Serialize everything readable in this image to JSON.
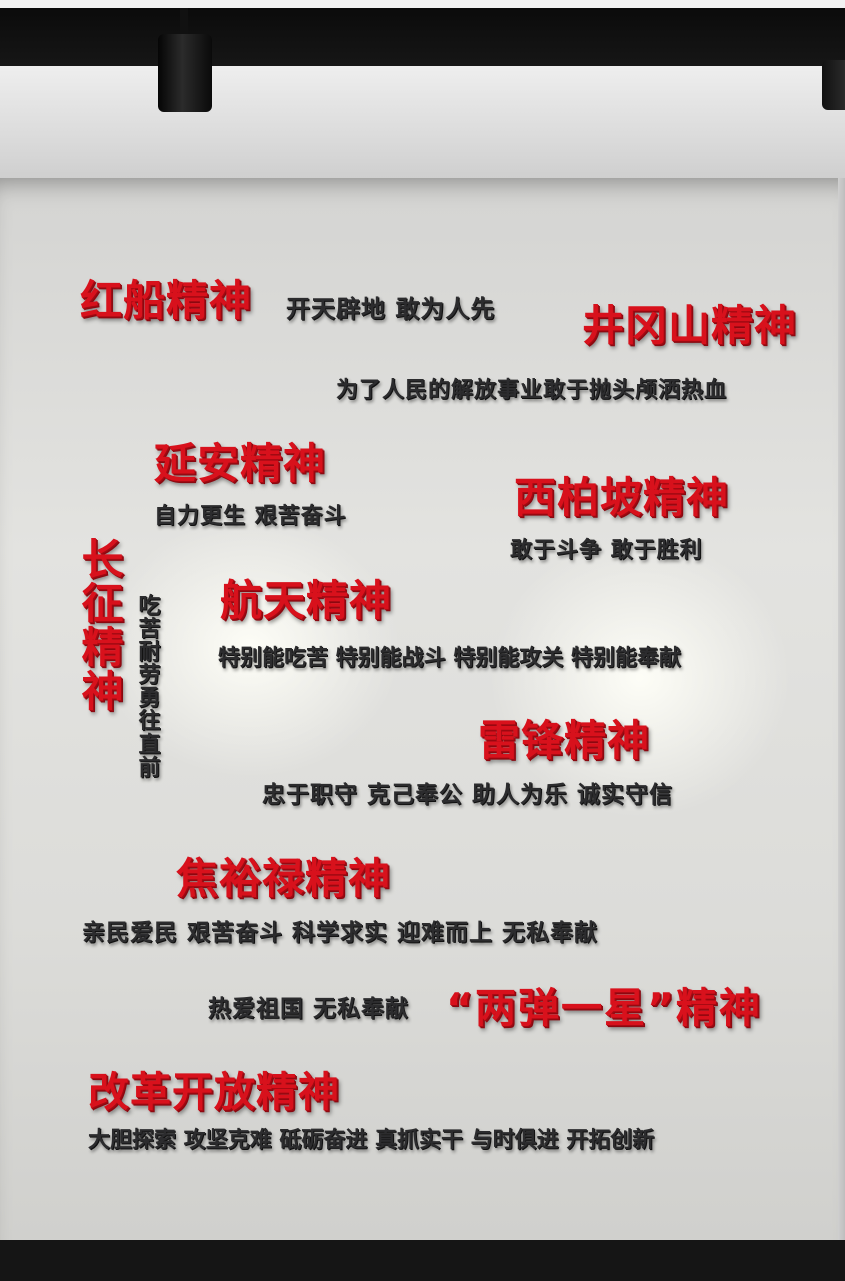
{
  "spirits": {
    "hongchuan": {
      "title": "红船精神",
      "motto": "开天辟地 敢为人先"
    },
    "jinggangshan": {
      "title": "井冈山精神",
      "motto": "为了人民的解放事业敢于抛头颅洒热血"
    },
    "yanan": {
      "title": "延安精神",
      "motto": "自力更生 艰苦奋斗"
    },
    "xibaipo": {
      "title": "西柏坡精神",
      "motto": "敢于斗争 敢于胜利"
    },
    "changzheng": {
      "title": "长征精神",
      "motto": "吃苦耐劳 勇往直前"
    },
    "hangtian": {
      "title": "航天精神",
      "motto": "特别能吃苦 特别能战斗 特别能攻关 特别能奉献"
    },
    "leifeng": {
      "title": "雷锋精神",
      "motto": "忠于职守 克己奉公 助人为乐 诚实守信"
    },
    "jiaoyulu": {
      "title": "焦裕禄精神",
      "motto": "亲民爱民 艰苦奋斗 科学求实 迎难而上 无私奉献"
    },
    "liangdan": {
      "title": "“两弹一星”精神",
      "motto": "热爱祖国 无私奉献"
    },
    "gaige": {
      "title": "改革开放精神",
      "motto": "大胆探索 攻坚克难 砥砺奋进 真抓实干 与时俱进 开拓创新"
    }
  },
  "colors": {
    "red_letters": "#d8111c",
    "dark_letters": "#2c2c2e",
    "wall": "#e0e0dd",
    "ceiling": "#111111"
  }
}
